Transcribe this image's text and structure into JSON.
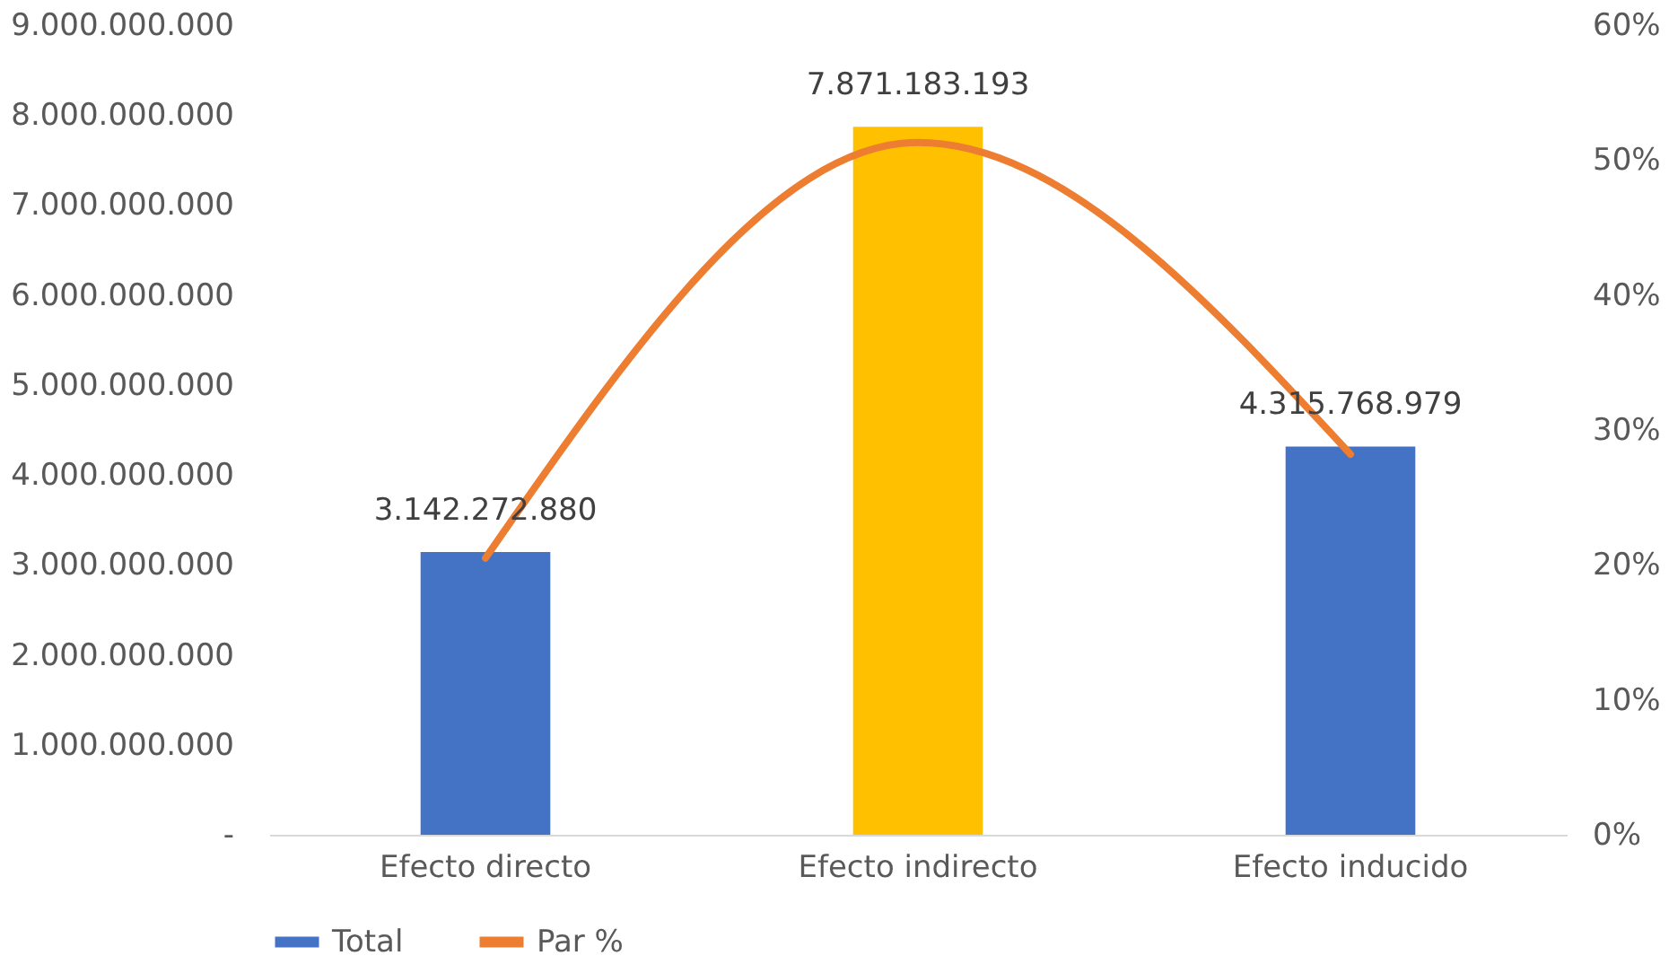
{
  "chart_data": {
    "type": "bar",
    "categories": [
      "Efecto directo",
      "Efecto indirecto",
      "Efecto inducido"
    ],
    "series": [
      {
        "name": "Total",
        "colors": [
          "#4472c4",
          "#ffc000",
          "#4472c4"
        ],
        "color": "#4472c4",
        "values": [
          3142272880,
          7871183193,
          4315768979
        ],
        "value_labels": [
          "3.142.272.880",
          "7.871.183.193",
          "4.315.768.979"
        ]
      },
      {
        "name": "Par %",
        "type": "line",
        "axis": "y2",
        "color": "#ed7d31",
        "values": [
          20.5,
          51.3,
          28.2
        ]
      }
    ],
    "ylim": [
      0,
      9000000000
    ],
    "yticks": [
      {
        "value": 0,
        "label": "-"
      },
      {
        "value": 1000000000,
        "label": "1.000.000.000"
      },
      {
        "value": 2000000000,
        "label": "2.000.000.000"
      },
      {
        "value": 3000000000,
        "label": "3.000.000.000"
      },
      {
        "value": 4000000000,
        "label": "4.000.000.000"
      },
      {
        "value": 5000000000,
        "label": "5.000.000.000"
      },
      {
        "value": 6000000000,
        "label": "6.000.000.000"
      },
      {
        "value": 7000000000,
        "label": "7.000.000.000"
      },
      {
        "value": 8000000000,
        "label": "8.000.000.000"
      },
      {
        "value": 9000000000,
        "label": "9.000.000.000"
      }
    ],
    "y2lim": [
      0,
      60
    ],
    "y2ticks": [
      {
        "value": 0,
        "label": "0%"
      },
      {
        "value": 10,
        "label": "10%"
      },
      {
        "value": 20,
        "label": "20%"
      },
      {
        "value": 30,
        "label": "30%"
      },
      {
        "value": 40,
        "label": "40%"
      },
      {
        "value": 50,
        "label": "50%"
      },
      {
        "value": 60,
        "label": "60%"
      }
    ],
    "grid": false,
    "legend": "bottom"
  }
}
